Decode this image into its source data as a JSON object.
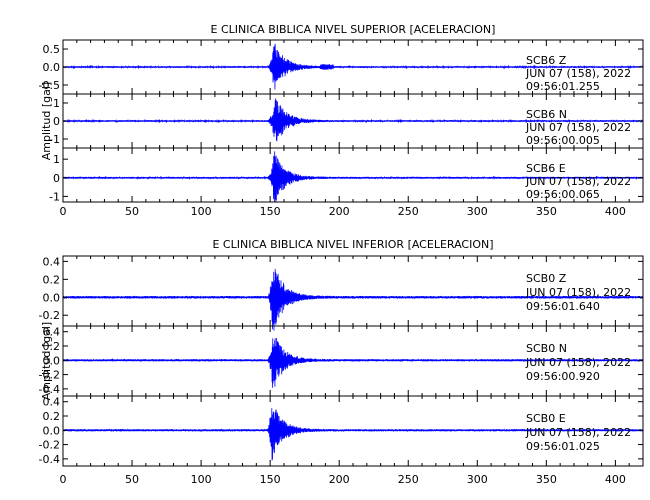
{
  "chart_data": [
    {
      "type": "line",
      "title": "E CLINICA BIBLICA NIVEL SUPERIOR [ACELERACION]",
      "ylabel": "Amplitud [gal]",
      "xlabel": "",
      "xlim": [
        0,
        420
      ],
      "x_ticks": [
        "0",
        "50",
        "100",
        "150",
        "200",
        "250",
        "300",
        "350",
        "400"
      ],
      "grid": false,
      "line_color": "#0000FF",
      "traces": [
        {
          "station": "SCB6",
          "component": "Z",
          "date": "JUN 07 (158), 2022",
          "time": "09:56:01.255",
          "ylim": [
            -0.75,
            0.75
          ],
          "y_ticks": [
            "0.5",
            "0.0",
            "-0.5"
          ],
          "peak_amplitude": 0.7,
          "onset_s": 148,
          "peak_s": 153
        },
        {
          "station": "SCB6",
          "component": "N",
          "date": "JUN 07 (158), 2022",
          "time": "09:56:00.005",
          "ylim": [
            -1.5,
            1.5
          ],
          "y_ticks": [
            "1",
            "0",
            "-1"
          ],
          "peak_amplitude": 1.4,
          "onset_s": 148,
          "peak_s": 154
        },
        {
          "station": "SCB6",
          "component": "E",
          "date": "JUN 07 (158), 2022",
          "time": "09:56:00.065",
          "ylim": [
            -1.3,
            1.6
          ],
          "y_ticks": [
            "1",
            "0",
            "-1"
          ],
          "peak_amplitude": 1.5,
          "onset_s": 148,
          "peak_s": 153
        }
      ]
    },
    {
      "type": "line",
      "title": "E CLINICA BIBLICA NIVEL INFERIOR [ACELERACION]",
      "ylabel": "Amplitud [gal]",
      "xlabel": "",
      "xlim": [
        0,
        420
      ],
      "x_ticks": [
        "0",
        "50",
        "100",
        "150",
        "200",
        "250",
        "300",
        "350",
        "400"
      ],
      "grid": false,
      "line_color": "#0000FF",
      "traces": [
        {
          "station": "SCB0",
          "component": "Z",
          "date": "JUN 07 (158), 2022",
          "time": "09:56:01.640",
          "ylim": [
            -0.32,
            0.46
          ],
          "y_ticks": [
            "0.4",
            "0.2",
            "0.0",
            "-0.2"
          ],
          "peak_amplitude": 0.42,
          "onset_s": 148,
          "peak_s": 152
        },
        {
          "station": "SCB0",
          "component": "N",
          "date": "JUN 07 (158), 2022",
          "time": "09:56:00.920",
          "ylim": [
            -0.5,
            0.48
          ],
          "y_ticks": [
            "0.4",
            "0.2",
            "0.0",
            "-0.2",
            "-0.4"
          ],
          "peak_amplitude": 0.45,
          "onset_s": 148,
          "peak_s": 152
        },
        {
          "station": "SCB0",
          "component": "E",
          "date": "JUN 07 (158), 2022",
          "time": "09:56:01.025",
          "ylim": [
            -0.5,
            0.48
          ],
          "y_ticks": [
            "0.4",
            "0.2",
            "0.0",
            "-0.2",
            "-0.4"
          ],
          "peak_amplitude": 0.45,
          "onset_s": 148,
          "peak_s": 151
        }
      ]
    }
  ]
}
